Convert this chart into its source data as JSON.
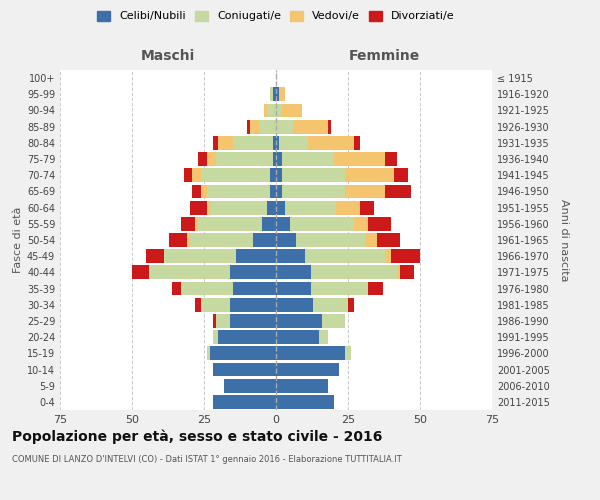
{
  "age_groups": [
    "0-4",
    "5-9",
    "10-14",
    "15-19",
    "20-24",
    "25-29",
    "30-34",
    "35-39",
    "40-44",
    "45-49",
    "50-54",
    "55-59",
    "60-64",
    "65-69",
    "70-74",
    "75-79",
    "80-84",
    "85-89",
    "90-94",
    "95-99",
    "100+"
  ],
  "birth_years": [
    "2011-2015",
    "2006-2010",
    "2001-2005",
    "1996-2000",
    "1991-1995",
    "1986-1990",
    "1981-1985",
    "1976-1980",
    "1971-1975",
    "1966-1970",
    "1961-1965",
    "1956-1960",
    "1951-1955",
    "1946-1950",
    "1941-1945",
    "1936-1940",
    "1931-1935",
    "1926-1930",
    "1921-1925",
    "1916-1920",
    "≤ 1915"
  ],
  "male": {
    "celibi": [
      22,
      18,
      22,
      23,
      20,
      16,
      16,
      15,
      16,
      14,
      8,
      5,
      3,
      2,
      2,
      1,
      1,
      0,
      0,
      1,
      0
    ],
    "coniugati": [
      0,
      0,
      0,
      1,
      2,
      5,
      10,
      18,
      28,
      25,
      22,
      22,
      20,
      22,
      24,
      20,
      14,
      6,
      3,
      1,
      0
    ],
    "vedovi": [
      0,
      0,
      0,
      0,
      0,
      0,
      0,
      0,
      0,
      0,
      1,
      1,
      1,
      2,
      3,
      3,
      5,
      3,
      1,
      0,
      0
    ],
    "divorziati": [
      0,
      0,
      0,
      0,
      0,
      1,
      2,
      3,
      6,
      6,
      6,
      5,
      6,
      3,
      3,
      3,
      2,
      1,
      0,
      0,
      0
    ]
  },
  "female": {
    "nubili": [
      20,
      18,
      22,
      24,
      15,
      16,
      13,
      12,
      12,
      10,
      7,
      5,
      3,
      2,
      2,
      2,
      1,
      0,
      0,
      1,
      0
    ],
    "coniugate": [
      0,
      0,
      0,
      2,
      3,
      8,
      12,
      20,
      30,
      28,
      24,
      22,
      18,
      22,
      22,
      18,
      10,
      6,
      2,
      0,
      0
    ],
    "vedove": [
      0,
      0,
      0,
      0,
      0,
      0,
      0,
      0,
      1,
      2,
      4,
      5,
      8,
      14,
      17,
      18,
      16,
      12,
      7,
      2,
      0
    ],
    "divorziate": [
      0,
      0,
      0,
      0,
      0,
      0,
      2,
      5,
      5,
      10,
      8,
      8,
      5,
      9,
      5,
      4,
      2,
      1,
      0,
      0,
      0
    ]
  },
  "colors": {
    "celibi": "#3d6fa8",
    "coniugati": "#c5d9a0",
    "vedovi": "#f5c46e",
    "divorziati": "#cc1a1a"
  },
  "xlim": 75,
  "title": "Popolazione per età, sesso e stato civile - 2016",
  "subtitle": "COMUNE DI LANZO D'INTELVI (CO) - Dati ISTAT 1° gennaio 2016 - Elaborazione TUTTITALIA.IT",
  "xlabel_left": "Maschi",
  "xlabel_right": "Femmine",
  "ylabel_left": "Fasce di età",
  "ylabel_right": "Anni di nascita",
  "bg_color": "#f0f0f0",
  "plot_bg_color": "#ffffff"
}
